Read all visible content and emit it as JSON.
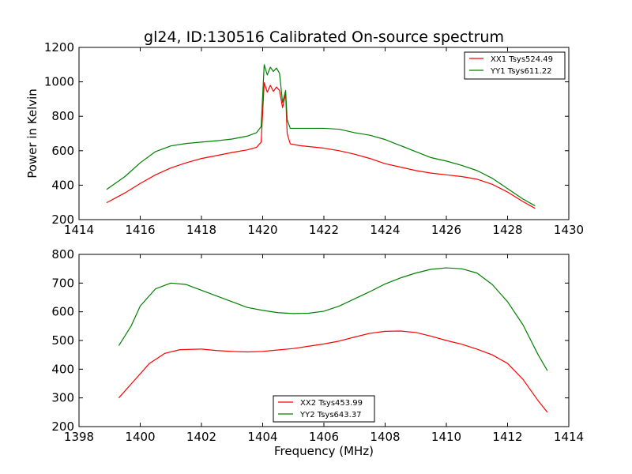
{
  "figure": {
    "title": "gl24, ID:130516 Calibrated On-source spectrum",
    "xlabel": "Frequency (MHz)"
  },
  "chart_data": [
    {
      "type": "line",
      "title": "gl24, ID:130516 Calibrated On-source spectrum",
      "xlabel": "",
      "ylabel": "Power in Kelvin",
      "xlim": [
        1414,
        1430
      ],
      "ylim": [
        200,
        1200
      ],
      "xticks": [
        1414,
        1416,
        1418,
        1420,
        1422,
        1424,
        1426,
        1428,
        1430
      ],
      "yticks": [
        200,
        400,
        600,
        800,
        1000,
        1200
      ],
      "grid": false,
      "legend_position": "top-right",
      "series": [
        {
          "name": "XX1 Tsys524.49",
          "color": "#ff0000",
          "points": [
            [
              1414.9,
              298
            ],
            [
              1415.5,
              355
            ],
            [
              1416.0,
              410
            ],
            [
              1416.5,
              460
            ],
            [
              1417.0,
              500
            ],
            [
              1417.5,
              530
            ],
            [
              1418.0,
              555
            ],
            [
              1418.5,
              572
            ],
            [
              1419.0,
              590
            ],
            [
              1419.5,
              605
            ],
            [
              1419.8,
              620
            ],
            [
              1419.95,
              650
            ],
            [
              1420.05,
              995
            ],
            [
              1420.15,
              940
            ],
            [
              1420.25,
              980
            ],
            [
              1420.35,
              945
            ],
            [
              1420.45,
              970
            ],
            [
              1420.55,
              950
            ],
            [
              1420.65,
              850
            ],
            [
              1420.75,
              930
            ],
            [
              1420.8,
              700
            ],
            [
              1420.9,
              640
            ],
            [
              1421.2,
              630
            ],
            [
              1422.0,
              615
            ],
            [
              1422.5,
              600
            ],
            [
              1423.0,
              580
            ],
            [
              1423.5,
              555
            ],
            [
              1424.0,
              525
            ],
            [
              1424.5,
              505
            ],
            [
              1425.0,
              485
            ],
            [
              1425.5,
              470
            ],
            [
              1426.0,
              460
            ],
            [
              1426.5,
              450
            ],
            [
              1427.0,
              435
            ],
            [
              1427.5,
              405
            ],
            [
              1428.0,
              360
            ],
            [
              1428.5,
              305
            ],
            [
              1428.9,
              265
            ]
          ]
        },
        {
          "name": "YY1 Tsys611.22",
          "color": "#008000",
          "points": [
            [
              1414.9,
              375
            ],
            [
              1415.5,
              450
            ],
            [
              1416.0,
              530
            ],
            [
              1416.5,
              595
            ],
            [
              1417.0,
              628
            ],
            [
              1417.5,
              642
            ],
            [
              1418.0,
              650
            ],
            [
              1418.5,
              658
            ],
            [
              1419.0,
              668
            ],
            [
              1419.5,
              685
            ],
            [
              1419.8,
              705
            ],
            [
              1419.95,
              740
            ],
            [
              1420.05,
              1100
            ],
            [
              1420.15,
              1040
            ],
            [
              1420.25,
              1085
            ],
            [
              1420.35,
              1060
            ],
            [
              1420.45,
              1080
            ],
            [
              1420.55,
              1050
            ],
            [
              1420.65,
              880
            ],
            [
              1420.75,
              950
            ],
            [
              1420.8,
              780
            ],
            [
              1420.9,
              730
            ],
            [
              1421.2,
              730
            ],
            [
              1422.0,
              730
            ],
            [
              1422.5,
              725
            ],
            [
              1423.0,
              705
            ],
            [
              1423.5,
              690
            ],
            [
              1424.0,
              665
            ],
            [
              1424.5,
              630
            ],
            [
              1425.0,
              595
            ],
            [
              1425.5,
              560
            ],
            [
              1426.0,
              540
            ],
            [
              1426.5,
              515
            ],
            [
              1427.0,
              485
            ],
            [
              1427.5,
              440
            ],
            [
              1428.0,
              380
            ],
            [
              1428.5,
              320
            ],
            [
              1428.9,
              280
            ]
          ]
        }
      ]
    },
    {
      "type": "line",
      "title": "",
      "xlabel": "Frequency (MHz)",
      "ylabel": "",
      "xlim": [
        1398,
        1414
      ],
      "ylim": [
        200,
        800
      ],
      "xticks": [
        1398,
        1400,
        1402,
        1404,
        1406,
        1408,
        1410,
        1412,
        1414
      ],
      "yticks": [
        200,
        300,
        400,
        500,
        600,
        700,
        800
      ],
      "grid": false,
      "legend_position": "bottom-center",
      "series": [
        {
          "name": "XX2 Tsys453.99",
          "color": "#ff0000",
          "points": [
            [
              1399.3,
              300
            ],
            [
              1399.8,
              360
            ],
            [
              1400.3,
              420
            ],
            [
              1400.8,
              455
            ],
            [
              1401.3,
              468
            ],
            [
              1402.0,
              470
            ],
            [
              1402.5,
              465
            ],
            [
              1403.0,
              462
            ],
            [
              1403.5,
              460
            ],
            [
              1404.0,
              462
            ],
            [
              1404.5,
              467
            ],
            [
              1405.0,
              472
            ],
            [
              1405.5,
              480
            ],
            [
              1406.0,
              488
            ],
            [
              1406.5,
              498
            ],
            [
              1407.0,
              512
            ],
            [
              1407.5,
              525
            ],
            [
              1408.0,
              532
            ],
            [
              1408.5,
              533
            ],
            [
              1409.0,
              528
            ],
            [
              1409.5,
              515
            ],
            [
              1410.0,
              500
            ],
            [
              1410.5,
              487
            ],
            [
              1411.0,
              470
            ],
            [
              1411.5,
              450
            ],
            [
              1412.0,
              420
            ],
            [
              1412.5,
              365
            ],
            [
              1413.0,
              290
            ],
            [
              1413.3,
              250
            ]
          ]
        },
        {
          "name": "YY2 Tsys643.37",
          "color": "#008000",
          "points": [
            [
              1399.3,
              482
            ],
            [
              1399.7,
              550
            ],
            [
              1400.0,
              620
            ],
            [
              1400.5,
              680
            ],
            [
              1401.0,
              700
            ],
            [
              1401.5,
              695
            ],
            [
              1402.0,
              675
            ],
            [
              1402.5,
              655
            ],
            [
              1403.0,
              635
            ],
            [
              1403.5,
              615
            ],
            [
              1404.0,
              605
            ],
            [
              1404.5,
              597
            ],
            [
              1405.0,
              594
            ],
            [
              1405.5,
              595
            ],
            [
              1406.0,
              602
            ],
            [
              1406.5,
              620
            ],
            [
              1407.0,
              645
            ],
            [
              1407.5,
              670
            ],
            [
              1408.0,
              697
            ],
            [
              1408.5,
              718
            ],
            [
              1409.0,
              735
            ],
            [
              1409.5,
              748
            ],
            [
              1410.0,
              753
            ],
            [
              1410.5,
              750
            ],
            [
              1411.0,
              735
            ],
            [
              1411.5,
              695
            ],
            [
              1412.0,
              635
            ],
            [
              1412.5,
              555
            ],
            [
              1413.0,
              450
            ],
            [
              1413.3,
              395
            ]
          ]
        }
      ]
    }
  ]
}
